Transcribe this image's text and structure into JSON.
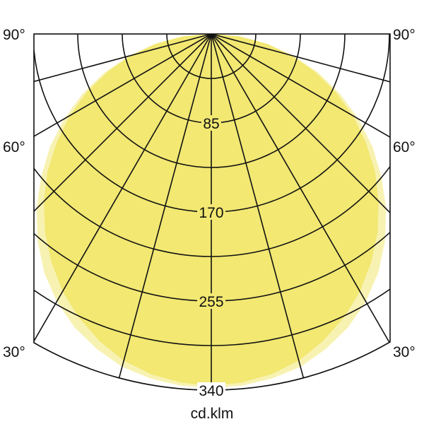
{
  "chart_data": {
    "type": "polar",
    "unit_label": "cd.klm",
    "radial_ticks": [
      "85",
      "170",
      "255",
      "340"
    ],
    "radial_max": 340,
    "angle_labels": [
      "90°",
      "60°",
      "30°"
    ],
    "angle_grid_step_deg": 15,
    "symmetric": true,
    "angles_deg": [
      0,
      5,
      10,
      15,
      20,
      25,
      30,
      35,
      40,
      45,
      50,
      55,
      60,
      65,
      70,
      75,
      80,
      85,
      90
    ],
    "series": [
      {
        "values": [
          336,
          334,
          330,
          323,
          312,
          299,
          284,
          266,
          247,
          226,
          204,
          180,
          156,
          131,
          105,
          79,
          53,
          27,
          0
        ],
        "color": "#F2E872"
      },
      {
        "values": [
          338,
          337,
          334,
          329,
          320,
          309,
          295,
          278,
          258,
          236,
          212,
          188,
          162,
          136,
          109,
          82,
          55,
          28,
          0
        ],
        "color": "#F8F2B2"
      }
    ]
  }
}
